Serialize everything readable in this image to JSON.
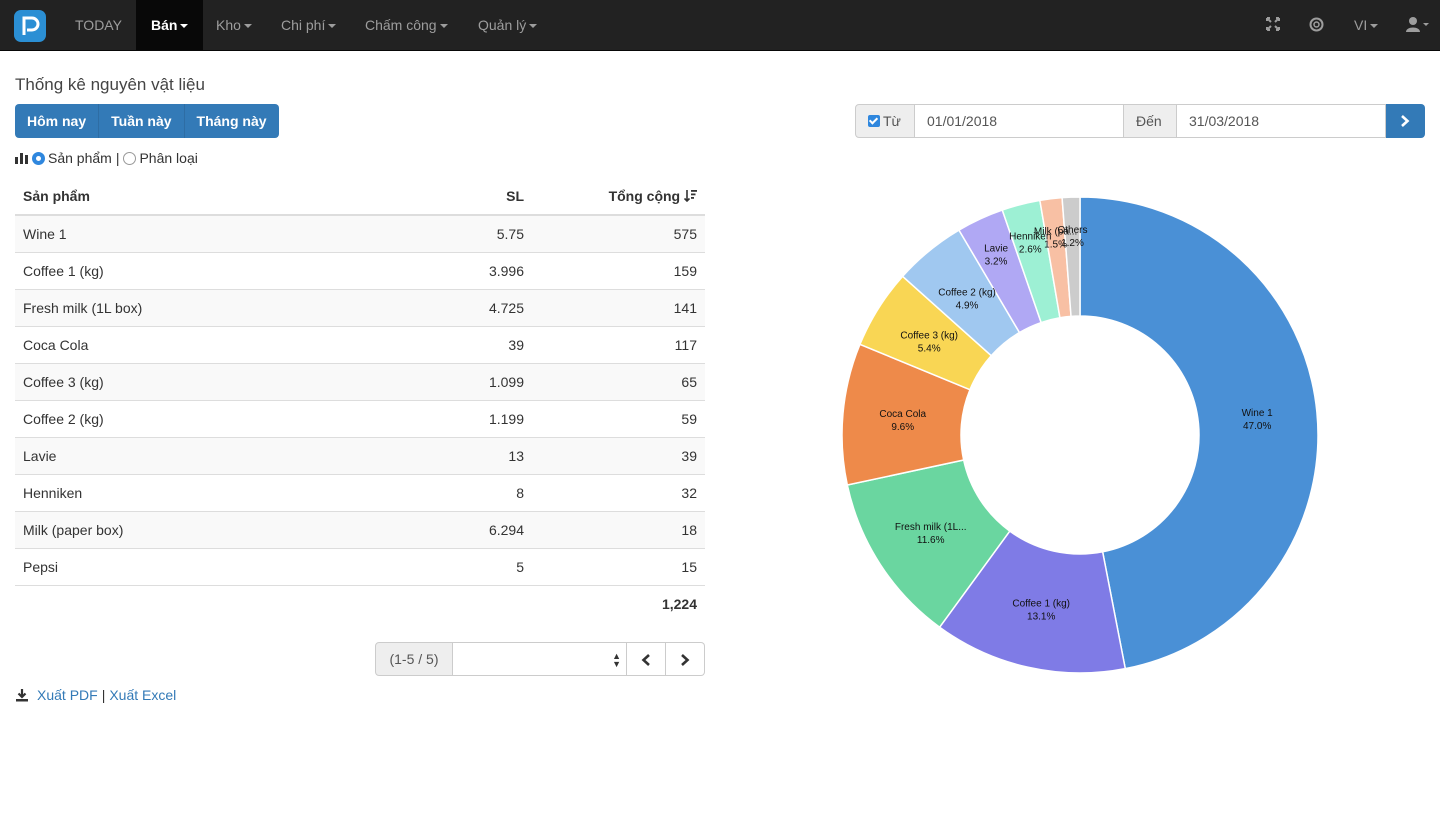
{
  "nav": {
    "items": [
      {
        "label": "TODAY",
        "active": false,
        "caret": false
      },
      {
        "label": "Bán",
        "active": true,
        "caret": true
      },
      {
        "label": "Kho",
        "active": false,
        "caret": true
      },
      {
        "label": "Chi phí",
        "active": false,
        "caret": true
      },
      {
        "label": "Chấm công",
        "active": false,
        "caret": true
      },
      {
        "label": "Quản lý",
        "active": false,
        "caret": true
      }
    ],
    "lang": "VI",
    "icons": [
      "logo-icon",
      "fullscreen-icon",
      "support-icon",
      "user-icon"
    ]
  },
  "page": {
    "title": "Thống kê nguyên vật liệu",
    "period_buttons": [
      "Hôm nay",
      "Tuần này",
      "Tháng này"
    ],
    "group_by": {
      "product": "Sản phẩm",
      "category": "Phân loại",
      "selected": "product",
      "separator": "|"
    }
  },
  "filter": {
    "from_label": "Từ",
    "from_checked": true,
    "from_value": "01/01/2018",
    "to_label": "Đến",
    "to_value": "31/03/2018"
  },
  "table": {
    "headers": {
      "product": "Sản phẩm",
      "qty": "SL",
      "total": "Tổng cộng"
    },
    "rows": [
      {
        "product": "Wine 1",
        "qty": "5.75",
        "total": "575"
      },
      {
        "product": "Coffee 1 (kg)",
        "qty": "3.996",
        "total": "159"
      },
      {
        "product": "Fresh milk (1L box)",
        "qty": "4.725",
        "total": "141"
      },
      {
        "product": "Coca Cola",
        "qty": "39",
        "total": "117"
      },
      {
        "product": "Coffee 3 (kg)",
        "qty": "1.099",
        "total": "65"
      },
      {
        "product": "Coffee 2 (kg)",
        "qty": "1.199",
        "total": "59"
      },
      {
        "product": "Lavie",
        "qty": "13",
        "total": "39"
      },
      {
        "product": "Henniken",
        "qty": "8",
        "total": "32"
      },
      {
        "product": "Milk (paper box)",
        "qty": "6.294",
        "total": "18"
      },
      {
        "product": "Pepsi",
        "qty": "5",
        "total": "15"
      }
    ],
    "grand_total": "1,224"
  },
  "pager": {
    "info": "(1-5 / 5)",
    "page_select_value": ""
  },
  "export": {
    "pdf": "Xuất PDF",
    "separator": "|",
    "excel": "Xuất Excel"
  },
  "chart_data": {
    "type": "pie",
    "donut": true,
    "categories": [
      "Wine 1",
      "Coffee 1 (kg)",
      "Fresh milk (1L box)",
      "Coca Cola",
      "Coffee 3 (kg)",
      "Coffee 2 (kg)",
      "Lavie",
      "Henniken",
      "Milk (paper box)",
      "Others"
    ],
    "values": [
      47.0,
      13.1,
      11.6,
      9.6,
      5.4,
      4.9,
      3.2,
      2.6,
      1.5,
      1.2
    ],
    "labels": [
      "Wine 1",
      "Coffee 1 (kg)",
      "Fresh milk (1L...",
      "Coca Cola",
      "Coffee 3 (kg)",
      "Coffee 2 (kg)",
      "Lavie",
      "Henniken",
      "Milk (pa...",
      "Others"
    ],
    "value_labels": [
      "47.0%",
      "13.1%",
      "11.6%",
      "9.6%",
      "5.4%",
      "4.9%",
      "3.2%",
      "2.6%",
      "1.5%",
      "1.2%"
    ],
    "colors": [
      "#4a90d6",
      "#7f7be6",
      "#6ad6a0",
      "#ee8a4a",
      "#f9d654",
      "#a0c8f0",
      "#b0a8f4",
      "#9df0d4",
      "#f8c0a4",
      "#cccccc"
    ]
  }
}
